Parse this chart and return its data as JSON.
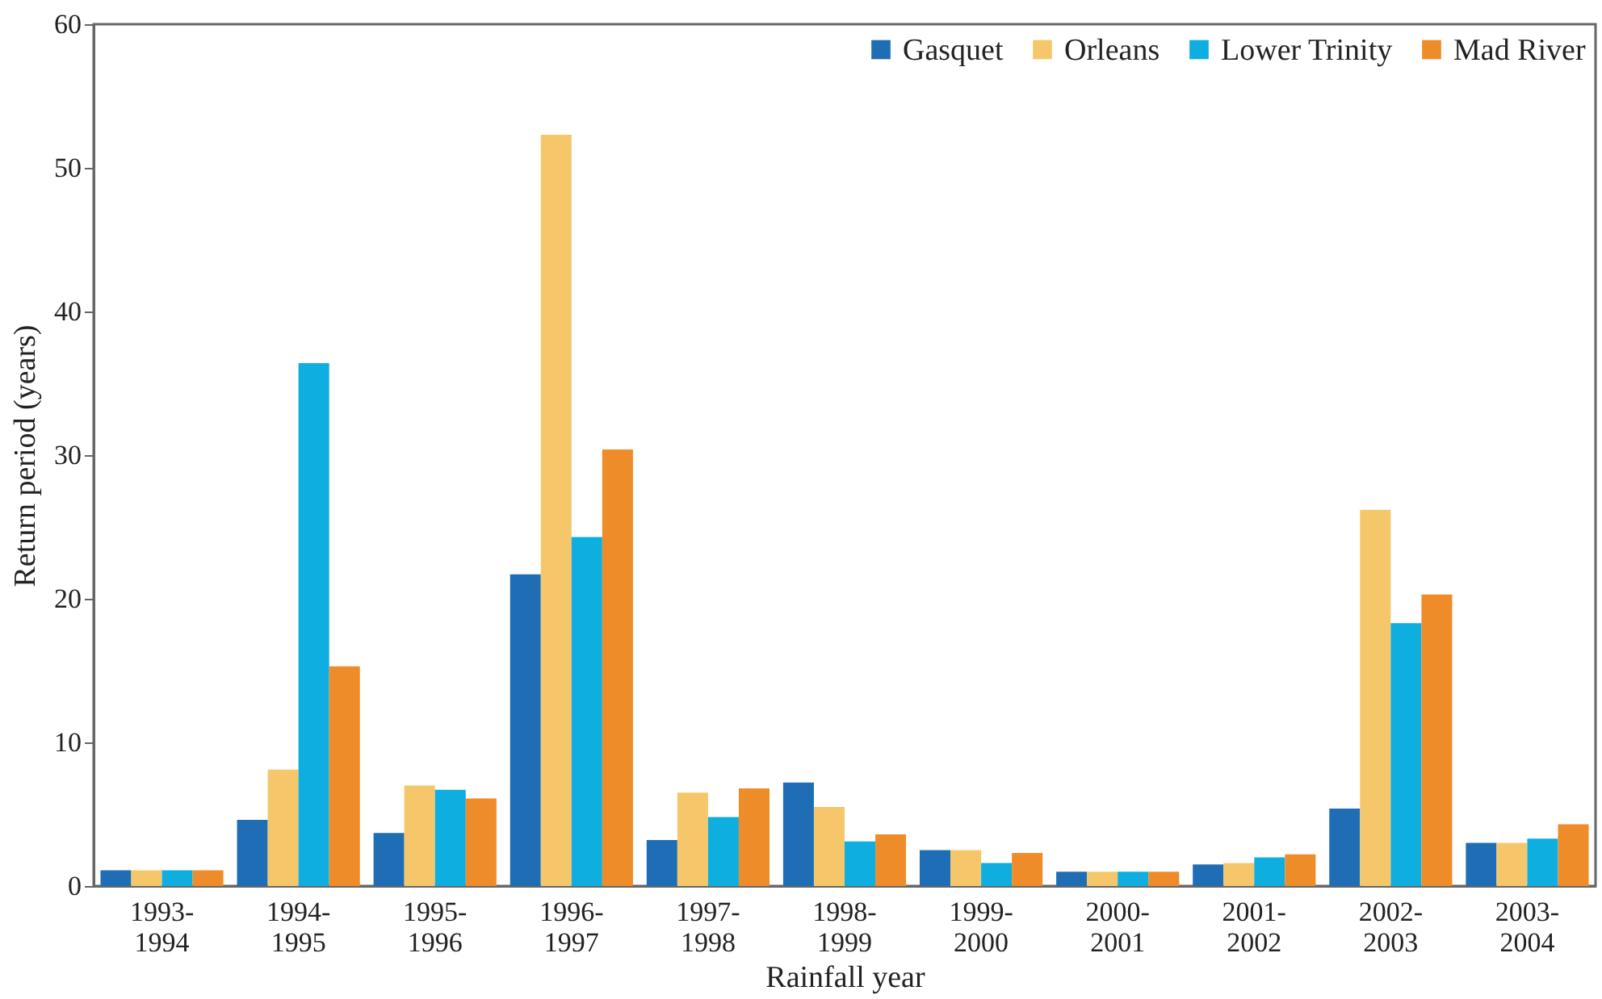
{
  "chart_data": {
    "type": "bar",
    "xlabel": "Rainfall year",
    "ylabel": "Return period (years)",
    "categories": [
      "1993-1994",
      "1994-1995",
      "1995-1996",
      "1996-1997",
      "1997-1998",
      "1998-1999",
      "1999-2000",
      "2000-2001",
      "2001-2002",
      "2002-2003",
      "2003-2004"
    ],
    "series": [
      {
        "name": "Gasquet",
        "color": "#1f6eb5",
        "values": [
          1.1,
          4.6,
          3.7,
          21.7,
          3.2,
          7.2,
          2.5,
          1.0,
          1.5,
          5.4,
          3.0
        ]
      },
      {
        "name": "Orleans",
        "color": "#f5c76a",
        "values": [
          1.1,
          8.1,
          7.0,
          52.3,
          6.5,
          5.5,
          2.5,
          1.0,
          1.6,
          26.2,
          3.0
        ]
      },
      {
        "name": "Lower Trinity",
        "color": "#0eaee0",
        "values": [
          1.1,
          36.4,
          6.7,
          24.3,
          4.8,
          3.1,
          1.6,
          1.0,
          2.0,
          18.3,
          3.3
        ]
      },
      {
        "name": "Mad River",
        "color": "#ee8c2a",
        "values": [
          1.1,
          15.3,
          6.1,
          30.4,
          6.8,
          3.6,
          2.3,
          1.0,
          2.2,
          20.3,
          4.3
        ]
      }
    ],
    "ylim": [
      0,
      60
    ],
    "yticks": [
      0,
      10,
      20,
      30,
      40,
      50,
      60
    ],
    "grid": false,
    "legend": "top right"
  }
}
